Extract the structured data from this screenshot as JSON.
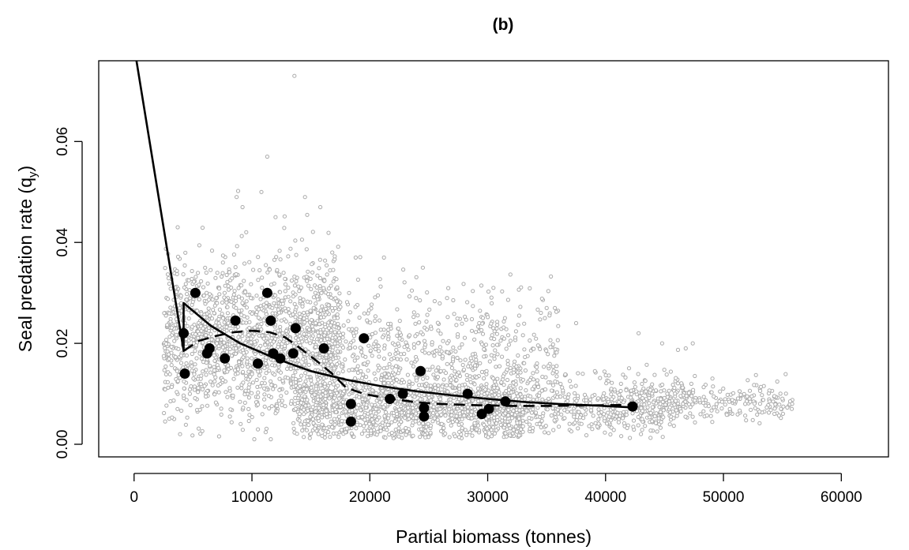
{
  "chart_data": {
    "type": "scatter",
    "title": "(b)",
    "xlabel": "Partial biomass (tonnes)",
    "ylabel": "Seal predation rate (q",
    "ylabel_sub": "y",
    "ylabel_close": ")",
    "xlim": [
      -3000,
      64000
    ],
    "ylim": [
      -0.0025,
      0.076
    ],
    "x_ticks": [
      0,
      10000,
      20000,
      30000,
      40000,
      50000,
      60000
    ],
    "x_tick_labels": [
      "0",
      "10000",
      "20000",
      "30000",
      "40000",
      "50000",
      "60000"
    ],
    "y_ticks": [
      0.0,
      0.02,
      0.04,
      0.06
    ],
    "y_tick_labels": [
      "0.00",
      "0.02",
      "0.04",
      "0.06"
    ],
    "grid": false,
    "legend": "none",
    "colors": {
      "cloud": "#aaaaaa",
      "points": "#000000",
      "lines": "#000000"
    },
    "cloud": {
      "description_free": true,
      "seed": 20240611,
      "count": 4200,
      "clusters": [
        {
          "weight": 0.38,
          "x_range": [
            2500,
            17500
          ],
          "y_center": 0.021,
          "y_sd": 0.0075
        },
        {
          "weight": 0.3,
          "x_range": [
            13500,
            33000
          ],
          "y_center": 0.0075,
          "y_sd": 0.0035
        },
        {
          "weight": 0.14,
          "x_range": [
            16000,
            36000
          ],
          "y_center": 0.018,
          "y_sd": 0.007
        },
        {
          "weight": 0.12,
          "x_range": [
            30000,
            47000
          ],
          "y_center": 0.0075,
          "y_sd": 0.003
        },
        {
          "weight": 0.06,
          "x_range": [
            42000,
            56000
          ],
          "y_center": 0.0085,
          "y_sd": 0.0018
        }
      ],
      "outliers": [
        [
          13600,
          0.073
        ],
        [
          11300,
          0.057
        ],
        [
          10800,
          0.05
        ],
        [
          8700,
          0.049
        ],
        [
          14500,
          0.049
        ],
        [
          9200,
          0.047
        ],
        [
          15800,
          0.047
        ],
        [
          12000,
          0.045
        ],
        [
          18800,
          0.037
        ],
        [
          21200,
          0.037
        ],
        [
          24500,
          0.035
        ],
        [
          35000,
          0.027
        ],
        [
          35700,
          0.027
        ],
        [
          37500,
          0.024
        ],
        [
          42800,
          0.022
        ],
        [
          44800,
          0.02
        ],
        [
          47400,
          0.02
        ],
        [
          46800,
          0.019
        ],
        [
          52400,
          0.0095
        ],
        [
          53900,
          0.0085
        ],
        [
          55800,
          0.007
        ],
        [
          3900,
          0.002
        ],
        [
          10200,
          0.001
        ],
        [
          11600,
          0.001
        ],
        [
          3700,
          0.043
        ]
      ]
    },
    "points": {
      "x": [
        4200,
        4300,
        5200,
        6200,
        6400,
        7700,
        8600,
        10500,
        11300,
        11600,
        11800,
        12400,
        13500,
        13700,
        16100,
        18400,
        18400,
        19500,
        21700,
        22800,
        24300,
        24600,
        24600,
        28300,
        29500,
        30100,
        31500,
        42300
      ],
      "y": [
        0.022,
        0.014,
        0.03,
        0.018,
        0.019,
        0.017,
        0.0245,
        0.016,
        0.03,
        0.0245,
        0.018,
        0.017,
        0.018,
        0.023,
        0.019,
        0.008,
        0.0045,
        0.021,
        0.009,
        0.01,
        0.0145,
        0.0055,
        0.0072,
        0.01,
        0.006,
        0.007,
        0.0085,
        0.0075
      ]
    },
    "series": [
      {
        "style": "solid",
        "x": [
          200,
          4200,
          4200,
          6500,
          9000,
          12000,
          15000,
          18000,
          21000,
          24000,
          27000,
          30000,
          33000,
          36000,
          39000,
          42300
        ],
        "y": [
          0.076,
          0.0185,
          0.028,
          0.0235,
          0.02,
          0.017,
          0.0145,
          0.0128,
          0.0115,
          0.0105,
          0.0097,
          0.009,
          0.0084,
          0.008,
          0.0077,
          0.0073
        ]
      },
      {
        "style": "dashed",
        "x": [
          4200,
          5500,
          7000,
          8500,
          10000,
          11500,
          12800,
          14000,
          15500,
          16800,
          18000,
          19500,
          21000,
          22500,
          24000,
          26000,
          28000,
          30000,
          32000,
          35000,
          38000,
          42300
        ],
        "y": [
          0.0185,
          0.0205,
          0.0215,
          0.0222,
          0.0225,
          0.0222,
          0.0212,
          0.0192,
          0.0165,
          0.014,
          0.0112,
          0.01,
          0.0093,
          0.0088,
          0.0083,
          0.008,
          0.0078,
          0.0077,
          0.0076,
          0.0076,
          0.0077,
          0.0078
        ]
      }
    ]
  }
}
